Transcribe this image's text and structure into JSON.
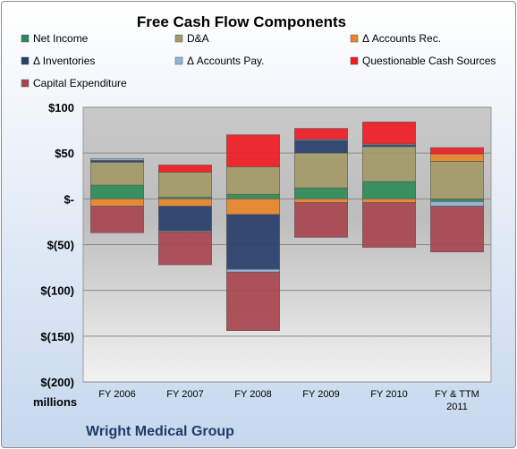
{
  "chart_data": {
    "type": "bar",
    "title": "Free Cash Flow Components",
    "categories": [
      "FY 2006",
      "FY 2007",
      "FY 2008",
      "FY 2009",
      "FY 2010",
      "FY & TTM 2011"
    ],
    "category_lines": [
      [
        "FY 2006"
      ],
      [
        "FY 2007"
      ],
      [
        "FY 2008"
      ],
      [
        "FY 2009"
      ],
      [
        "FY 2010"
      ],
      [
        "FY & TTM",
        "2011"
      ]
    ],
    "stacked": true,
    "series": [
      {
        "name": "Net Income",
        "color": "#2e8b57",
        "values": [
          15,
          2,
          5,
          12,
          19,
          -3
        ]
      },
      {
        "name": "D&A",
        "color": "#a39a68",
        "values": [
          25,
          27,
          30,
          38,
          38,
          41
        ]
      },
      {
        "name": "Δ Accounts Rec.",
        "color": "#e8862a",
        "values": [
          -8,
          -8,
          -17,
          -4,
          -4,
          8
        ]
      },
      {
        "name": "Δ Inventories",
        "color": "#283f6b",
        "values": [
          2,
          -27,
          -60,
          14,
          2,
          0
        ]
      },
      {
        "name": "Δ Accounts Pay.",
        "color": "#8fb4da",
        "values": [
          2,
          -1,
          -3,
          1,
          1,
          -5
        ]
      },
      {
        "name": "Questionable Cash Sources",
        "color": "#ee1c24",
        "values": [
          0,
          8,
          35,
          12,
          24,
          7
        ]
      },
      {
        "name": "Capital Expenditure",
        "color": "#a8444f",
        "values": [
          -29,
          -36,
          -64,
          -38,
          -49,
          -50
        ]
      }
    ],
    "y_ticks": [
      100,
      50,
      0,
      -50,
      -100,
      -150,
      -200
    ],
    "y_tick_labels": [
      "$100",
      "$50",
      "$-",
      "$(50)",
      "$(100)",
      "$(150)",
      "$(200)"
    ],
    "ylim": [
      -200,
      100
    ],
    "ylabel": "",
    "xlabel": "",
    "unit_label": "millions",
    "company": "Wright Medical Group",
    "legend_placement": "top",
    "grid": true
  }
}
